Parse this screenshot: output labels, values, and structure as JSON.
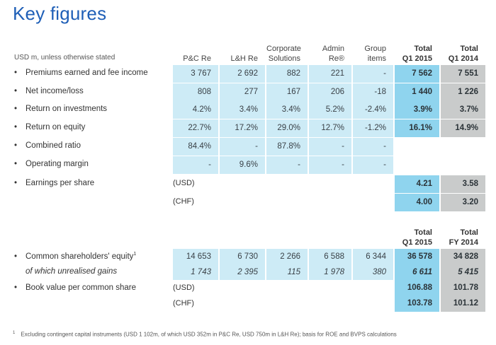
{
  "title": "Key figures",
  "unit_note": "USD m, unless otherwise stated",
  "columns": [
    "P&C Re",
    "L&H Re",
    "Corporate Solutions",
    "Admin Re®",
    "Group items",
    "Total Q1 2015",
    "Total Q1 2014"
  ],
  "columns_lines": [
    [
      "P&C Re"
    ],
    [
      "L&H Re"
    ],
    [
      "Corporate",
      "Solutions"
    ],
    [
      "Admin",
      "Re®"
    ],
    [
      "Group",
      "items"
    ],
    [
      "Total",
      "Q1 2015"
    ],
    [
      "Total",
      "Q1 2014"
    ]
  ],
  "section1": {
    "rows": [
      {
        "label": "Premiums earned and fee income",
        "values": [
          "3 767",
          "2 692",
          "882",
          "221",
          "-",
          "7 562",
          "7 551"
        ]
      },
      {
        "label": "Net income/loss",
        "values": [
          "808",
          "277",
          "167",
          "206",
          "-18",
          "1 440",
          "1 226"
        ]
      },
      {
        "label": "Return on investments",
        "values": [
          "4.2%",
          "3.4%",
          "3.4%",
          "5.2%",
          "-2.4%",
          "3.9%",
          "3.7%"
        ]
      },
      {
        "label": "Return on equity",
        "values": [
          "22.7%",
          "17.2%",
          "29.0%",
          "12.7%",
          "-1.2%",
          "16.1%",
          "14.9%"
        ]
      },
      {
        "label": "Combined ratio",
        "values": [
          "84.4%",
          "-",
          "87.8%",
          "-",
          "-"
        ]
      },
      {
        "label": "Operating margin",
        "values": [
          "-",
          "9.6%",
          "-",
          "-",
          "-"
        ]
      }
    ],
    "eps": {
      "label": "Earnings per share",
      "usd": {
        "unit": "(USD)",
        "values": [
          "4.21",
          "3.58"
        ]
      },
      "chf": {
        "unit": "(CHF)",
        "values": [
          "4.00",
          "3.20"
        ]
      }
    }
  },
  "section2": {
    "headers_lines": [
      [
        "Total",
        "Q1 2015"
      ],
      [
        "Total",
        "FY 2014"
      ]
    ],
    "rows": [
      {
        "label": "Common shareholders' equity",
        "footnote_ref": "1",
        "values": [
          "14 653",
          "6 730",
          "2 266",
          "6 588",
          "6 344",
          "36 578",
          "34 828"
        ]
      },
      {
        "label": "of which unrealised gains",
        "italic": true,
        "values": [
          "1 743",
          "2 395",
          "115",
          "1 978",
          "380",
          "6 611",
          "5 415"
        ]
      }
    ],
    "bvps": {
      "label": "Book value per common share",
      "usd": {
        "unit": "(USD)",
        "values": [
          "106.88",
          "101.78"
        ]
      },
      "chf": {
        "unit": "(CHF)",
        "values": [
          "103.78",
          "101.12"
        ]
      }
    }
  },
  "footnote": {
    "ref": "1",
    "text": "Excluding contingent capital instruments (USD 1 102m, of which USD 352m in P&C Re, USD 750m in L&H Re); basis for ROE and BVPS calculations"
  },
  "bullet": "•",
  "colors": {
    "title": "#1f5fb7",
    "segment_bg": "#cdebf6",
    "total_current_bg": "#8fd4ee",
    "total_prior_bg": "#c9cbcb"
  }
}
